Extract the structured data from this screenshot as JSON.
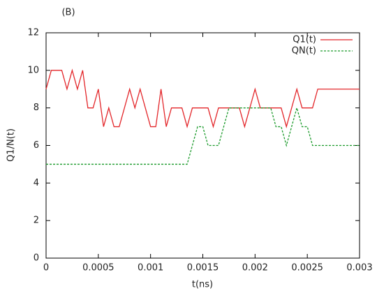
{
  "chart_data": {
    "type": "line",
    "title": "(B)",
    "xlabel": "t(ns)",
    "ylabel": "Q1/N(t)",
    "x": [
      0,
      5e-05,
      0.0001,
      0.00015,
      0.0002,
      0.00025,
      0.0003,
      0.00035,
      0.0004,
      0.00045,
      0.0005,
      0.00055,
      0.0006,
      0.00065,
      0.0007,
      0.00075,
      0.0008,
      0.00085,
      0.0009,
      0.00095,
      0.001,
      0.00105,
      0.0011,
      0.00115,
      0.0012,
      0.00125,
      0.0013,
      0.00135,
      0.0014,
      0.00145,
      0.0015,
      0.00155,
      0.0016,
      0.00165,
      0.0017,
      0.00175,
      0.0018,
      0.00185,
      0.0019,
      0.00195,
      0.002,
      0.00205,
      0.0021,
      0.00215,
      0.0022,
      0.00225,
      0.0023,
      0.00235,
      0.0024,
      0.00245,
      0.0025,
      0.00255,
      0.0026,
      0.00265,
      0.0027,
      0.00275,
      0.0028,
      0.00285,
      0.0029,
      0.00295,
      0.003
    ],
    "series": [
      {
        "name": "Q1(t)",
        "color": "#e3262a",
        "dashed": false,
        "values": [
          9,
          10,
          10,
          10,
          9,
          10,
          9,
          10,
          8,
          8,
          9,
          7,
          8,
          7,
          7,
          8,
          9,
          8,
          9,
          8,
          7,
          7,
          9,
          7,
          8,
          8,
          8,
          7,
          8,
          8,
          8,
          8,
          7,
          8,
          8,
          8,
          8,
          8,
          7,
          8,
          9,
          8,
          8,
          8,
          8,
          8,
          7,
          8,
          9,
          8,
          8,
          8,
          9,
          9,
          9,
          9,
          9,
          9,
          9,
          9,
          9
        ]
      },
      {
        "name": "QN(t)",
        "color": "#1a9a2a",
        "dashed": true,
        "values": [
          5,
          5,
          5,
          5,
          5,
          5,
          5,
          5,
          5,
          5,
          5,
          5,
          5,
          5,
          5,
          5,
          5,
          5,
          5,
          5,
          5,
          5,
          5,
          5,
          5,
          5,
          5,
          5,
          6,
          7,
          7,
          6,
          6,
          6,
          7,
          8,
          8,
          8,
          8,
          8,
          8,
          8,
          8,
          8,
          7,
          7,
          6,
          7,
          8,
          7,
          7,
          6,
          6,
          6,
          6,
          6,
          6,
          6,
          6,
          6,
          6
        ]
      }
    ],
    "xlim": [
      0,
      0.003
    ],
    "xticks": [
      0,
      0.0005,
      0.001,
      0.0015,
      0.002,
      0.0025,
      0.003
    ],
    "ylim": [
      0,
      12
    ],
    "yticks": [
      0,
      2,
      4,
      6,
      8,
      10,
      12
    ],
    "legend": "top-right"
  }
}
